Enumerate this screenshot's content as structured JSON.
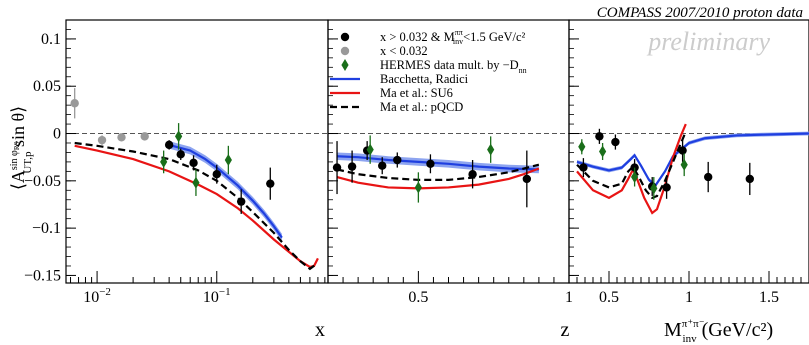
{
  "header": {
    "experiment": "COMPASS 2007/2010 proton data",
    "status": "preliminary"
  },
  "y_axis": {
    "label_main": "⟨A",
    "label_sub": "UT,p",
    "label_sup": "sin φ",
    "label_sup_sub": "RS",
    "label_tail": " sin θ⟩",
    "ticks": [
      {
        "v": 0.1,
        "label": "0.1"
      },
      {
        "v": 0.05,
        "label": "0.05"
      },
      {
        "v": 0,
        "label": "0"
      },
      {
        "v": -0.05,
        "label": "−0.05"
      },
      {
        "v": -0.1,
        "label": "−0.1"
      },
      {
        "v": -0.15,
        "label": "−0.15"
      }
    ],
    "ylim": [
      -0.158,
      0.12
    ]
  },
  "legend": {
    "entries": [
      {
        "label": "x > 0.032 & M",
        "label_sup": "ππ",
        "label_sub": "inv",
        "label_tail": "<1.5 GeV/c²",
        "marker": "circle",
        "color": "#000000"
      },
      {
        "label": "x < 0.032",
        "marker": "circle",
        "color": "#999999"
      },
      {
        "label": "HERMES data mult. by −D",
        "label_sub": "nn",
        "marker": "diamond",
        "color": "#1a6e1a"
      },
      {
        "label": "Bacchetta, Radici",
        "marker": "line",
        "color": "#1f3fe0"
      },
      {
        "label": "Ma et al.: SU6",
        "marker": "line",
        "color": "#e81414"
      },
      {
        "label": "Ma et al.: pQCD",
        "marker": "dashed",
        "color": "#000000"
      }
    ]
  },
  "colors": {
    "compass": "#000000",
    "low_x": "#999999",
    "hermes": "#1a6e1a",
    "bacchetta": "#1f3fe0",
    "bacchetta_band": "#8da4f0",
    "su6": "#e81414",
    "pqcd": "#000000",
    "zero_line": "#555555"
  },
  "chart_data": [
    {
      "type": "scatter",
      "panel": "x",
      "xlabel": "x",
      "xscale": "log",
      "xlim": [
        0.0055,
        0.85
      ],
      "ylim": [
        -0.158,
        0.12
      ],
      "x_ticks": [
        {
          "v": 0.01,
          "label": "10",
          "sup": "−2"
        },
        {
          "v": 0.1,
          "label": "10",
          "sup": "−1"
        }
      ],
      "series": [
        {
          "name": "x > 0.032 & M_inv^ππ<1.5 GeV/c²",
          "points": [
            {
              "x": 0.04,
              "y": -0.012,
              "err": 0.005
            },
            {
              "x": 0.05,
              "y": -0.022,
              "err": 0.006
            },
            {
              "x": 0.064,
              "y": -0.031,
              "err": 0.008
            },
            {
              "x": 0.1,
              "y": -0.043,
              "err": 0.01
            },
            {
              "x": 0.16,
              "y": -0.072,
              "err": 0.013
            },
            {
              "x": 0.28,
              "y": -0.053,
              "err": 0.017
            }
          ]
        },
        {
          "name": "x < 0.032",
          "points": [
            {
              "x": 0.0065,
              "y": 0.032,
              "err": 0.016
            },
            {
              "x": 0.011,
              "y": -0.007,
              "err": 0.005
            },
            {
              "x": 0.016,
              "y": -0.004,
              "err": 0.004
            },
            {
              "x": 0.025,
              "y": -0.003,
              "err": 0.004
            }
          ]
        },
        {
          "name": "HERMES data mult. by −D_nn",
          "points": [
            {
              "x": 0.036,
              "y": -0.03,
              "err": 0.012
            },
            {
              "x": 0.048,
              "y": -0.003,
              "err": 0.014
            },
            {
              "x": 0.067,
              "y": -0.052,
              "err": 0.014
            },
            {
              "x": 0.125,
              "y": -0.028,
              "err": 0.015
            }
          ]
        }
      ],
      "curves": [
        {
          "name": "Bacchetta, Radici",
          "style": "band",
          "points": [
            [
              0.04,
              -0.012
            ],
            [
              0.06,
              -0.018
            ],
            [
              0.08,
              -0.027
            ],
            [
              0.1,
              -0.036
            ],
            [
              0.15,
              -0.055
            ],
            [
              0.2,
              -0.071
            ],
            [
              0.25,
              -0.085
            ],
            [
              0.3,
              -0.098
            ],
            [
              0.35,
              -0.11
            ]
          ],
          "band": 0.004
        },
        {
          "name": "Ma et al.: SU6",
          "style": "solid",
          "points": [
            [
              0.0065,
              -0.013
            ],
            [
              0.01,
              -0.018
            ],
            [
              0.02,
              -0.027
            ],
            [
              0.04,
              -0.04
            ],
            [
              0.07,
              -0.054
            ],
            [
              0.1,
              -0.064
            ],
            [
              0.15,
              -0.079
            ],
            [
              0.2,
              -0.092
            ],
            [
              0.3,
              -0.112
            ],
            [
              0.4,
              -0.125
            ],
            [
              0.5,
              -0.135
            ],
            [
              0.6,
              -0.141
            ],
            [
              0.65,
              -0.14
            ],
            [
              0.7,
              -0.132
            ]
          ]
        },
        {
          "name": "Ma et al.: pQCD",
          "style": "dashed",
          "points": [
            [
              0.0065,
              -0.01
            ],
            [
              0.01,
              -0.013
            ],
            [
              0.02,
              -0.019
            ],
            [
              0.04,
              -0.027
            ],
            [
              0.07,
              -0.039
            ],
            [
              0.1,
              -0.05
            ],
            [
              0.15,
              -0.068
            ],
            [
              0.2,
              -0.083
            ],
            [
              0.3,
              -0.105
            ],
            [
              0.4,
              -0.123
            ],
            [
              0.5,
              -0.135
            ],
            [
              0.6,
              -0.143
            ],
            [
              0.68,
              -0.138
            ]
          ]
        }
      ]
    },
    {
      "type": "scatter",
      "panel": "z",
      "xlabel": "z",
      "xscale": "linear",
      "xlim": [
        0.2,
        1.0
      ],
      "ylim": [
        -0.158,
        0.12
      ],
      "x_ticks": [
        {
          "v": 0.5,
          "label": "0.5"
        },
        {
          "v": 1.0,
          "label": "1"
        }
      ],
      "series": [
        {
          "name": "x > 0.032 & M_inv^ππ<1.5 GeV/c²",
          "points": [
            {
              "x": 0.23,
              "y": -0.036,
              "err": 0.028
            },
            {
              "x": 0.28,
              "y": -0.035,
              "err": 0.017
            },
            {
              "x": 0.33,
              "y": -0.018,
              "err": 0.01
            },
            {
              "x": 0.38,
              "y": -0.034,
              "err": 0.009
            },
            {
              "x": 0.43,
              "y": -0.028,
              "err": 0.008
            },
            {
              "x": 0.54,
              "y": -0.032,
              "err": 0.01
            },
            {
              "x": 0.68,
              "y": -0.043,
              "err": 0.015
            },
            {
              "x": 0.86,
              "y": -0.048,
              "err": 0.03
            }
          ]
        },
        {
          "name": "HERMES data mult. by −D_nn",
          "points": [
            {
              "x": 0.34,
              "y": -0.017,
              "err": 0.015
            },
            {
              "x": 0.5,
              "y": -0.057,
              "err": 0.016
            },
            {
              "x": 0.74,
              "y": -0.017,
              "err": 0.014
            }
          ]
        }
      ],
      "curves": [
        {
          "name": "Bacchetta, Radici",
          "style": "band",
          "points": [
            [
              0.23,
              -0.024
            ],
            [
              0.3,
              -0.025
            ],
            [
              0.4,
              -0.028
            ],
            [
              0.5,
              -0.03
            ],
            [
              0.6,
              -0.032
            ],
            [
              0.7,
              -0.035
            ],
            [
              0.8,
              -0.037
            ],
            [
              0.9,
              -0.038
            ]
          ],
          "band": 0.004
        },
        {
          "name": "Ma et al.: SU6",
          "style": "solid",
          "points": [
            [
              0.23,
              -0.046
            ],
            [
              0.3,
              -0.052
            ],
            [
              0.4,
              -0.057
            ],
            [
              0.5,
              -0.058
            ],
            [
              0.6,
              -0.057
            ],
            [
              0.7,
              -0.054
            ],
            [
              0.8,
              -0.048
            ],
            [
              0.85,
              -0.043
            ],
            [
              0.9,
              -0.037
            ]
          ]
        },
        {
          "name": "Ma et al.: pQCD",
          "style": "dashed",
          "points": [
            [
              0.23,
              -0.038
            ],
            [
              0.3,
              -0.043
            ],
            [
              0.4,
              -0.047
            ],
            [
              0.5,
              -0.049
            ],
            [
              0.6,
              -0.049
            ],
            [
              0.7,
              -0.046
            ],
            [
              0.8,
              -0.041
            ],
            [
              0.85,
              -0.037
            ],
            [
              0.9,
              -0.033
            ]
          ]
        }
      ]
    },
    {
      "type": "scatter",
      "panel": "minv",
      "xlabel_main": "M",
      "xlabel_sup": "π⁺π⁻",
      "xlabel_sub": "inv",
      "xlabel_tail": " (GeV/c²)",
      "xscale": "linear",
      "xlim": [
        0.25,
        1.75
      ],
      "ylim": [
        -0.158,
        0.12
      ],
      "x_ticks": [
        {
          "v": 0.5,
          "label": "0.5"
        },
        {
          "v": 1.0,
          "label": "1"
        },
        {
          "v": 1.5,
          "label": "1.5"
        }
      ],
      "series": [
        {
          "name": "x > 0.032 & M_inv^ππ<1.5 GeV/c²",
          "points": [
            {
              "x": 0.34,
              "y": -0.036,
              "err": 0.01
            },
            {
              "x": 0.44,
              "y": -0.003,
              "err": 0.008
            },
            {
              "x": 0.54,
              "y": -0.009,
              "err": 0.008
            },
            {
              "x": 0.66,
              "y": -0.036,
              "err": 0.009
            },
            {
              "x": 0.77,
              "y": -0.056,
              "err": 0.01
            },
            {
              "x": 0.86,
              "y": -0.057,
              "err": 0.012
            },
            {
              "x": 0.96,
              "y": -0.018,
              "err": 0.012
            },
            {
              "x": 1.12,
              "y": -0.046,
              "err": 0.016
            },
            {
              "x": 1.38,
              "y": -0.048,
              "err": 0.017
            }
          ]
        },
        {
          "name": "HERMES data mult. by −D_nn",
          "points": [
            {
              "x": 0.33,
              "y": -0.014,
              "err": 0.008
            },
            {
              "x": 0.46,
              "y": -0.019,
              "err": 0.009
            },
            {
              "x": 0.66,
              "y": -0.046,
              "err": 0.01
            },
            {
              "x": 0.78,
              "y": -0.058,
              "err": 0.012
            },
            {
              "x": 0.97,
              "y": -0.033,
              "err": 0.012
            }
          ]
        }
      ],
      "curves": [
        {
          "name": "Bacchetta, Radici",
          "style": "band",
          "points": [
            [
              0.3,
              -0.03
            ],
            [
              0.4,
              -0.035
            ],
            [
              0.5,
              -0.039
            ],
            [
              0.58,
              -0.036
            ],
            [
              0.63,
              -0.028
            ],
            [
              0.66,
              -0.023
            ],
            [
              0.7,
              -0.034
            ],
            [
              0.75,
              -0.049
            ],
            [
              0.79,
              -0.055
            ],
            [
              0.85,
              -0.04
            ],
            [
              0.9,
              -0.024
            ],
            [
              1.0,
              -0.01
            ],
            [
              1.1,
              -0.005
            ],
            [
              1.3,
              -0.002
            ],
            [
              1.5,
              -0.001
            ],
            [
              1.75,
              0.0
            ]
          ],
          "band": 0.002
        },
        {
          "name": "Ma et al.: SU6",
          "style": "solid",
          "points": [
            [
              0.3,
              -0.04
            ],
            [
              0.4,
              -0.06
            ],
            [
              0.5,
              -0.068
            ],
            [
              0.58,
              -0.06
            ],
            [
              0.62,
              -0.048
            ],
            [
              0.65,
              -0.038
            ],
            [
              0.68,
              -0.05
            ],
            [
              0.72,
              -0.068
            ],
            [
              0.77,
              -0.084
            ],
            [
              0.8,
              -0.08
            ],
            [
              0.85,
              -0.055
            ],
            [
              0.9,
              -0.025
            ],
            [
              0.95,
              -0.002
            ],
            [
              0.98,
              0.01
            ]
          ]
        },
        {
          "name": "Ma et al.: pQCD",
          "style": "dashed",
          "points": [
            [
              0.3,
              -0.033
            ],
            [
              0.4,
              -0.05
            ],
            [
              0.5,
              -0.057
            ],
            [
              0.58,
              -0.053
            ],
            [
              0.62,
              -0.04
            ],
            [
              0.65,
              -0.035
            ],
            [
              0.69,
              -0.047
            ],
            [
              0.73,
              -0.06
            ],
            [
              0.77,
              -0.068
            ],
            [
              0.8,
              -0.066
            ],
            [
              0.85,
              -0.05
            ],
            [
              0.9,
              -0.03
            ],
            [
              0.95,
              -0.01
            ],
            [
              0.98,
              0.002
            ]
          ]
        }
      ]
    }
  ]
}
